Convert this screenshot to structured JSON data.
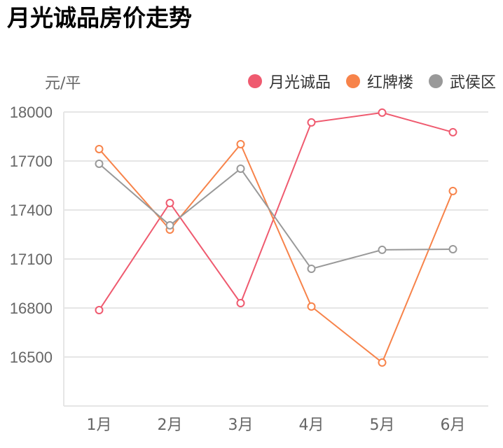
{
  "title": "月光诚品房价走势",
  "unit_label": "元/平",
  "legend": [
    {
      "label": "月光诚品",
      "color": "#ef5a6f"
    },
    {
      "label": "红牌楼",
      "color": "#f7834a"
    },
    {
      "label": "武侯区",
      "color": "#999999"
    }
  ],
  "chart_data": {
    "type": "line",
    "title": "月光诚品房价走势",
    "xlabel": "",
    "ylabel": "元/平",
    "categories": [
      "1月",
      "2月",
      "3月",
      "4月",
      "5月",
      "6月"
    ],
    "y_ticks": [
      16500,
      16800,
      17100,
      17400,
      17700,
      18000
    ],
    "ylim": [
      16200,
      18000
    ],
    "grid": true,
    "legend_position": "top-right",
    "series": [
      {
        "name": "月光诚品",
        "color": "#ef5a6f",
        "values": [
          16787,
          17443,
          16830,
          17936,
          17996,
          17876
        ]
      },
      {
        "name": "红牌楼",
        "color": "#f7834a",
        "values": [
          17773,
          17280,
          17803,
          16809,
          16466,
          17516
        ]
      },
      {
        "name": "武侯区",
        "color": "#999999",
        "values": [
          17683,
          17306,
          17653,
          17040,
          17156,
          17160
        ]
      }
    ]
  }
}
